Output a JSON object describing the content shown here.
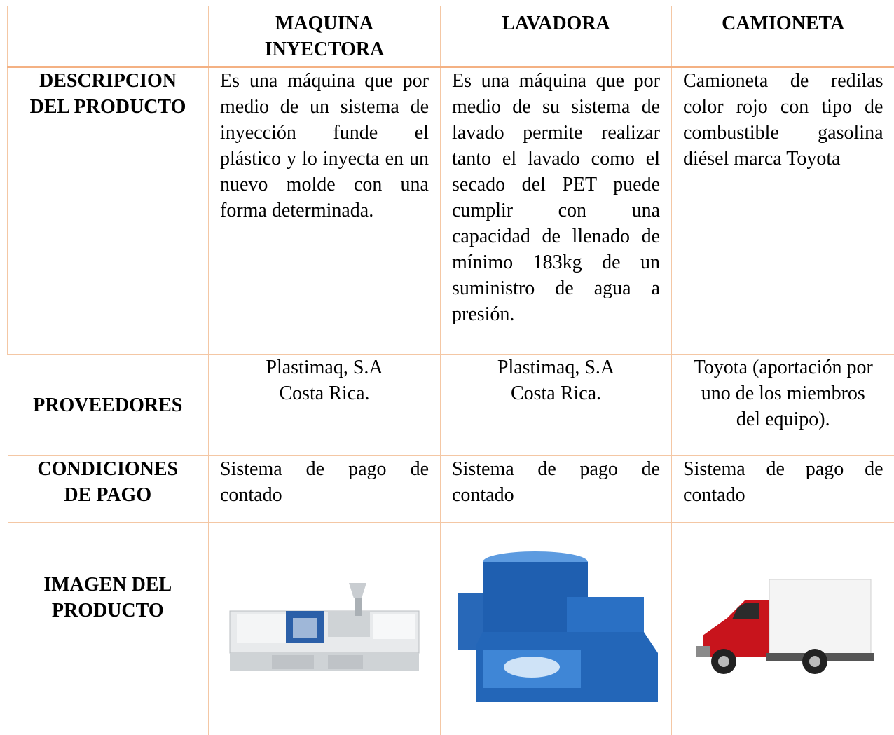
{
  "table": {
    "columns": [
      "MAQUINA INYECTORA",
      "LAVADORA",
      "CAMIONETA"
    ],
    "rows": [
      {
        "label": "DESCRIPCION DEL PRODUCTO",
        "cells": [
          "Es una máquina que por medio de un sistema de inyección funde el plástico y lo inyecta en un nuevo molde con una forma determinada.",
          "Es una máquina que por medio de su sistema de lavado permite realizar tanto el lavado como el secado del PET puede cumplir con una capacidad de llenado de mínimo 183kg de un suministro de agua a presión.",
          "Camioneta de redilas color rojo con tipo de combustible gasolina diésel marca Toyota"
        ]
      },
      {
        "label": "PROVEEDORES",
        "cells": [
          [
            "Plastimaq, S.A",
            "Costa Rica."
          ],
          [
            "Plastimaq, S.A",
            "Costa Rica."
          ],
          [
            "Toyota (aportación por",
            "uno de los miembros",
            "del equipo)."
          ]
        ]
      },
      {
        "label": "CONDICIONES DE PAGO",
        "cells": [
          "Sistema de pago de contado",
          "Sistema de pago de contado",
          "Sistema de pago de contado"
        ]
      },
      {
        "label": "IMAGEN DEL PRODUCTO"
      }
    ]
  }
}
